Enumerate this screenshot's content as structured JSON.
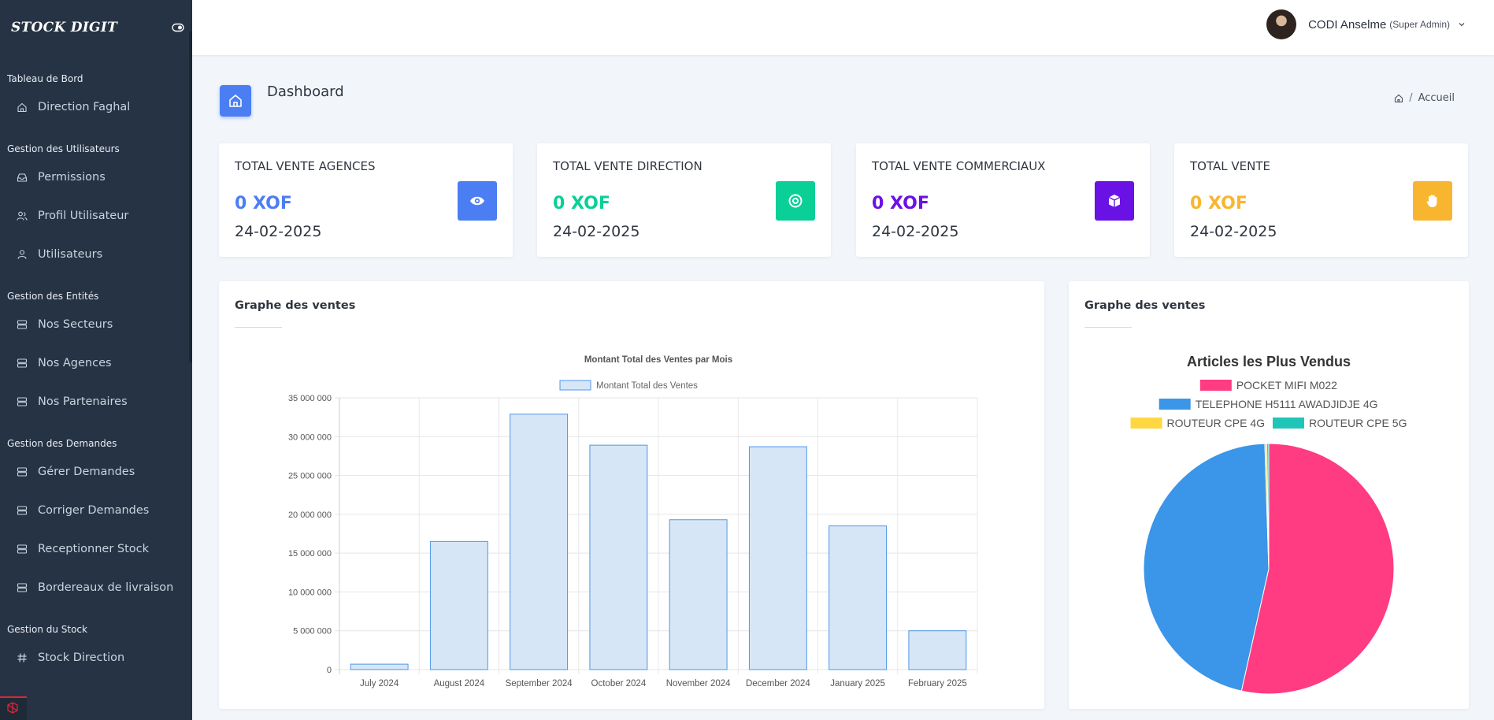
{
  "app": {
    "brand": "STOCK DIGIT"
  },
  "sidebar": {
    "sections": [
      {
        "title": "Tableau de Bord",
        "items": [
          {
            "label": "Direction Faghal",
            "icon": "home-icon"
          }
        ]
      },
      {
        "title": "Gestion des Utilisateurs",
        "items": [
          {
            "label": "Permissions",
            "icon": "inbox-icon"
          },
          {
            "label": "Profil Utilisateur",
            "icon": "users-icon"
          },
          {
            "label": "Utilisateurs",
            "icon": "user-icon"
          }
        ]
      },
      {
        "title": "Gestion des Entités",
        "items": [
          {
            "label": "Nos Secteurs",
            "icon": "server-icon"
          },
          {
            "label": "Nos Agences",
            "icon": "server-icon"
          },
          {
            "label": "Nos Partenaires",
            "icon": "server-icon"
          }
        ]
      },
      {
        "title": "Gestion des Demandes",
        "items": [
          {
            "label": "Gérer Demandes",
            "icon": "server-icon"
          },
          {
            "label": "Corriger Demandes",
            "icon": "server-icon"
          },
          {
            "label": "Receptionner Stock",
            "icon": "server-icon"
          },
          {
            "label": "Bordereaux de livraison",
            "icon": "server-icon"
          }
        ]
      },
      {
        "title": "Gestion du Stock",
        "items": [
          {
            "label": "Stock Direction",
            "icon": "hash-icon"
          }
        ]
      }
    ]
  },
  "header": {
    "user_name": "CODI Anselme",
    "user_role": "(Super Admin)"
  },
  "page": {
    "title": "Dashboard",
    "breadcrumb": "Accueil"
  },
  "stats": [
    {
      "title": "TOTAL VENTE AGENCES",
      "value": "0 XOF",
      "date": "24-02-2025",
      "color": "#4c7ef3",
      "icon": "eye-icon"
    },
    {
      "title": "TOTAL VENTE DIRECTION",
      "value": "0 XOF",
      "date": "24-02-2025",
      "color": "#0acf97",
      "icon": "target-icon"
    },
    {
      "title": "TOTAL VENTE COMMERCIAUX",
      "value": "0 XOF",
      "date": "24-02-2025",
      "color": "#6a11e6",
      "icon": "box-icon"
    },
    {
      "title": "TOTAL VENTE",
      "value": "0 XOF",
      "date": "24-02-2025",
      "color": "#f8b630",
      "icon": "hand-icon"
    }
  ],
  "panels": {
    "bar_title": "Graphe des ventes",
    "pie_title": "Graphe des ventes"
  },
  "chart_data": [
    {
      "type": "bar",
      "title": "Montant Total des Ventes par Mois",
      "categories": [
        "July 2024",
        "August 2024",
        "September 2024",
        "October 2024",
        "November 2024",
        "December 2024",
        "January 2025",
        "February 2025"
      ],
      "series": [
        {
          "name": "Montant Total des Ventes",
          "values": [
            700000,
            16500000,
            32900000,
            28900000,
            19300000,
            28700000,
            18500000,
            5000000
          ]
        }
      ],
      "ylim": [
        0,
        35000000
      ],
      "yticks": [
        "0",
        "5 000 000",
        "10 000 000",
        "15 000 000",
        "20 000 000",
        "25 000 000",
        "30 000 000",
        "35 000 000"
      ],
      "grid": true,
      "legend": "top",
      "colors": {
        "fill": "#d7e6f7",
        "stroke": "#4c97e8"
      }
    },
    {
      "type": "pie",
      "title": "Articles les Plus Vendus",
      "labels": [
        "POCKET MIFI M022",
        "TELEPHONE H5111 AWADJIDJE 4G",
        "ROUTEUR CPE 4G",
        "ROUTEUR CPE 5G"
      ],
      "values": [
        53.5,
        46.0,
        0.25,
        0.25
      ],
      "colors": [
        "#ff3b82",
        "#3b95e8",
        "#ffd740",
        "#1fc6b8"
      ],
      "legend": "top"
    }
  ]
}
